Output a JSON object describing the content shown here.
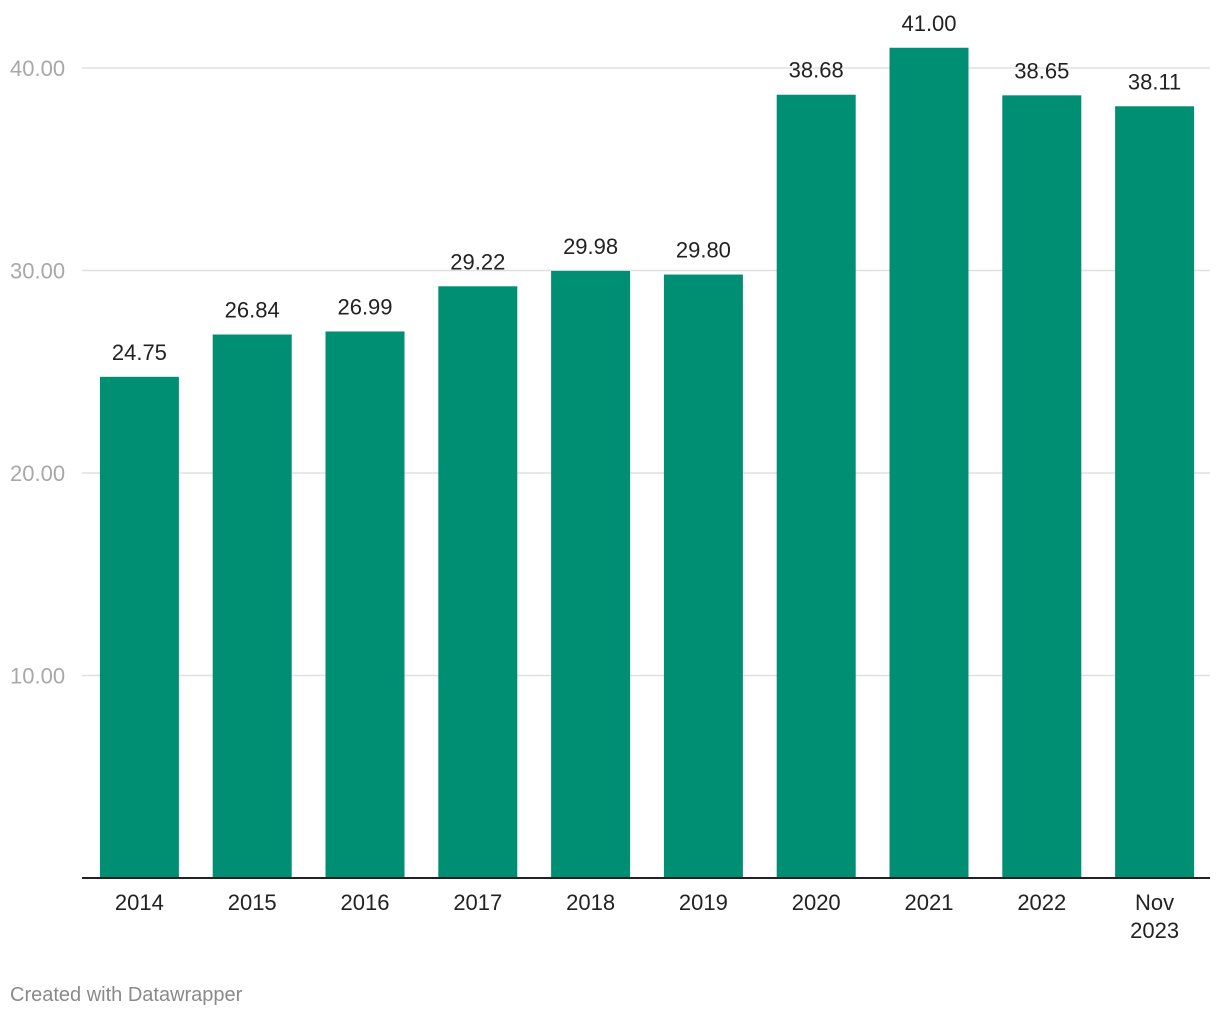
{
  "chart_data": {
    "type": "bar",
    "categories": [
      "2014",
      "2015",
      "2016",
      "2017",
      "2018",
      "2019",
      "2020",
      "2021",
      "2022",
      "Nov 2023"
    ],
    "values": [
      24.75,
      26.84,
      26.99,
      29.22,
      29.98,
      29.8,
      38.68,
      41.0,
      38.65,
      38.11
    ],
    "value_labels": [
      "24.75",
      "26.84",
      "26.99",
      "29.22",
      "29.98",
      "29.80",
      "38.68",
      "41.00",
      "38.65",
      "38.11"
    ],
    "ylim": [
      0,
      40
    ],
    "yticks": [
      10,
      20,
      30,
      40
    ],
    "ytick_labels": [
      "10.00",
      "20.00",
      "30.00",
      "40.00"
    ],
    "grid": true,
    "bar_color": "#008f73",
    "title": "",
    "xlabel": "",
    "ylabel": ""
  },
  "credit": "Created with Datawrapper"
}
